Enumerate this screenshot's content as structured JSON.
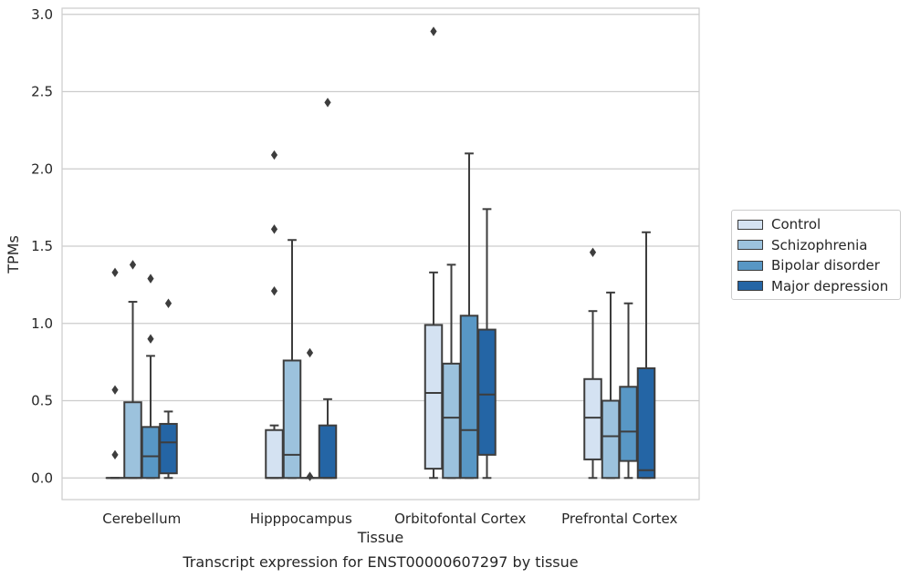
{
  "chart_data": {
    "type": "box",
    "title": "",
    "xlabel": "Tissue",
    "ylabel": "TPMs",
    "caption": "Transcript expression for ENST00000607297 by tissue",
    "ylim": [
      -0.14,
      3.04
    ],
    "yticks": [
      "0.0",
      "0.5",
      "1.0",
      "1.5",
      "2.0",
      "2.5",
      "3.0"
    ],
    "grid": true,
    "legend_position": "right",
    "categories": [
      "Cerebellum",
      "Hipppocampus",
      "Orbitofontal Cortex",
      "Prefrontal Cortex"
    ],
    "series": [
      {
        "name": "Control",
        "color": "#d4e2f2",
        "boxes": [
          {
            "q1": 0.0,
            "median": 0.0,
            "q3": 0.0,
            "whislo": 0.0,
            "whishi": 0.0,
            "fliers": [
              0.15,
              0.57,
              1.33
            ]
          },
          {
            "q1": 0.0,
            "median": 0.0,
            "q3": 0.31,
            "whislo": 0.0,
            "whishi": 0.34,
            "fliers": [
              1.21,
              1.61,
              2.09
            ]
          },
          {
            "q1": 0.06,
            "median": 0.55,
            "q3": 0.99,
            "whislo": 0.0,
            "whishi": 1.33,
            "fliers": [
              2.89
            ]
          },
          {
            "q1": 0.12,
            "median": 0.39,
            "q3": 0.64,
            "whislo": 0.0,
            "whishi": 1.08,
            "fliers": [
              1.46
            ]
          }
        ]
      },
      {
        "name": "Schizophrenia",
        "color": "#9cc2dd",
        "boxes": [
          {
            "q1": 0.0,
            "median": 0.0,
            "q3": 0.49,
            "whislo": 0.0,
            "whishi": 1.14,
            "fliers": [
              1.38
            ]
          },
          {
            "q1": 0.0,
            "median": 0.15,
            "q3": 0.76,
            "whislo": 0.0,
            "whishi": 1.54,
            "fliers": []
          },
          {
            "q1": 0.0,
            "median": 0.39,
            "q3": 0.74,
            "whislo": 0.0,
            "whishi": 1.38,
            "fliers": []
          },
          {
            "q1": 0.0,
            "median": 0.27,
            "q3": 0.5,
            "whislo": 0.0,
            "whishi": 1.2,
            "fliers": []
          }
        ]
      },
      {
        "name": "Bipolar disorder",
        "color": "#5897c5",
        "boxes": [
          {
            "q1": 0.0,
            "median": 0.14,
            "q3": 0.33,
            "whislo": 0.0,
            "whishi": 0.79,
            "fliers": [
              0.9,
              1.29
            ]
          },
          {
            "q1": 0.0,
            "median": 0.0,
            "q3": 0.0,
            "whislo": 0.0,
            "whishi": 0.0,
            "fliers": [
              0.01,
              0.81
            ]
          },
          {
            "q1": 0.0,
            "median": 0.31,
            "q3": 1.05,
            "whislo": 0.0,
            "whishi": 2.1,
            "fliers": []
          },
          {
            "q1": 0.11,
            "median": 0.3,
            "q3": 0.59,
            "whislo": 0.0,
            "whishi": 1.13,
            "fliers": []
          }
        ]
      },
      {
        "name": "Major depression",
        "color": "#2465a5",
        "boxes": [
          {
            "q1": 0.03,
            "median": 0.23,
            "q3": 0.35,
            "whislo": 0.0,
            "whishi": 0.43,
            "fliers": [
              1.13
            ]
          },
          {
            "q1": 0.0,
            "median": 0.0,
            "q3": 0.34,
            "whislo": 0.0,
            "whishi": 0.51,
            "fliers": [
              2.43
            ]
          },
          {
            "q1": 0.15,
            "median": 0.54,
            "q3": 0.96,
            "whislo": 0.0,
            "whishi": 1.74,
            "fliers": []
          },
          {
            "q1": 0.0,
            "median": 0.05,
            "q3": 0.71,
            "whislo": 0.0,
            "whishi": 1.59,
            "fliers": []
          }
        ]
      }
    ]
  }
}
